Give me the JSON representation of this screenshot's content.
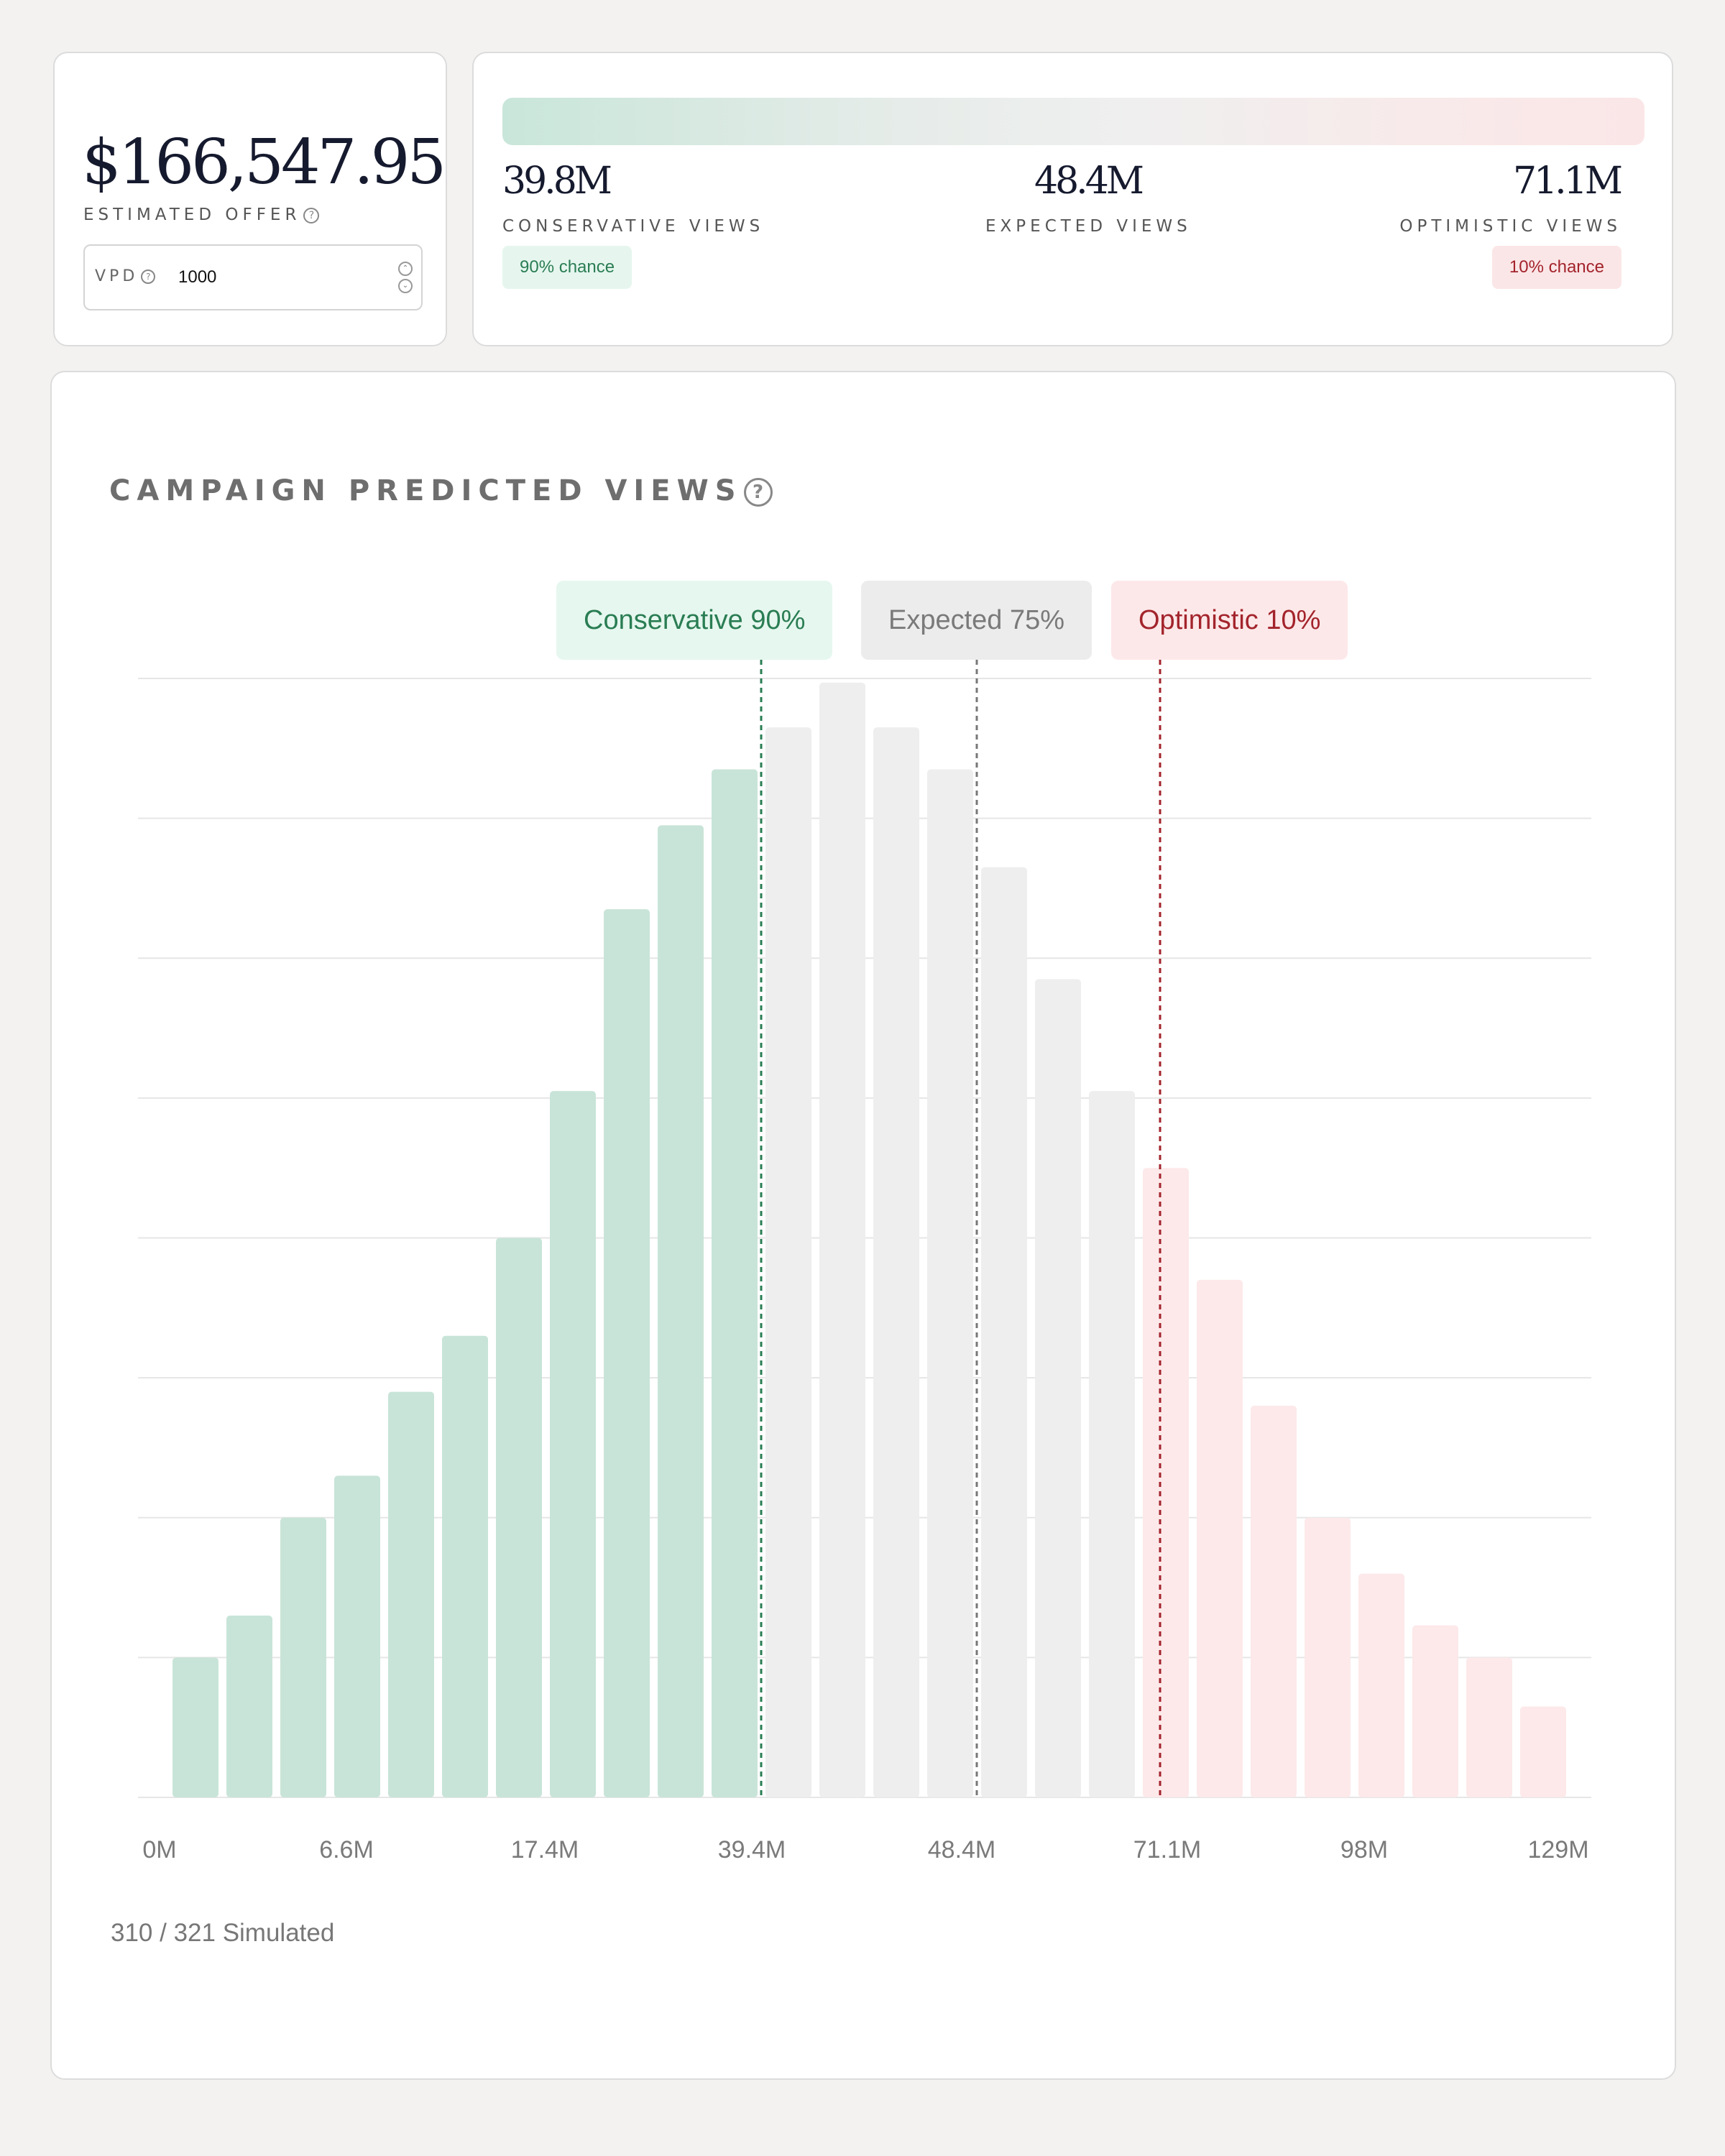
{
  "offer": {
    "value": "$166,547.95",
    "label": "ESTIMATED OFFER",
    "help_icon": "question-circle-icon",
    "vpd_label": "VPD",
    "vpd_value": "1000",
    "stepper_up_icon": "chevron-up-icon",
    "stepper_down_icon": "chevron-down-icon"
  },
  "views": {
    "bar_colors": {
      "start": "#c9e6da",
      "end": "#fbe6e7"
    },
    "conservative": {
      "value": "39.8M",
      "label": "CONSERVATIVE VIEWS",
      "chance": "90% chance"
    },
    "expected": {
      "value": "48.4M",
      "label": "EXPECTED VIEWS"
    },
    "optimistic": {
      "value": "71.1M",
      "label": "OPTIMISTIC VIEWS",
      "chance": "10% chance"
    }
  },
  "chart_panel": {
    "title": "CAMPAIGN PREDICTED VIEWS",
    "help_icon": "question-circle-icon",
    "simulated": "310 / 321 Simulated"
  },
  "colors": {
    "conservative": "#c8e4d8",
    "expected": "#eeeeee",
    "optimistic": "#fde9ea",
    "conservative_line": "#2a7d53",
    "expected_line": "#777777",
    "optimistic_line": "#a3242c",
    "grid": "#e6e6e6"
  },
  "chart_data": {
    "type": "bar",
    "title": "CAMPAIGN PREDICTED VIEWS",
    "xlabel": "",
    "ylabel": "",
    "grid": true,
    "x_tick_labels": [
      "0M",
      "6.6M",
      "17.4M",
      "39.4M",
      "48.4M",
      "71.1M",
      "98M",
      "129M"
    ],
    "ylim": [
      0,
      8
    ],
    "values": [
      1.0,
      1.3,
      2.0,
      2.3,
      2.9,
      3.3,
      4.0,
      5.05,
      6.35,
      6.95,
      7.35,
      7.65,
      7.97,
      7.65,
      7.35,
      6.65,
      5.85,
      5.05,
      4.5,
      3.7,
      2.8,
      2.0,
      1.6,
      1.23,
      1.0,
      0.65
    ],
    "segments": [
      {
        "name": "Conservative",
        "start": 0,
        "end": 11
      },
      {
        "name": "Expected",
        "start": 11,
        "end": 18
      },
      {
        "name": "Optimistic",
        "start": 18,
        "end": 25
      }
    ],
    "markers": [
      {
        "label": "Conservative 90%",
        "position": 11.0,
        "type": "conservative"
      },
      {
        "label": "Expected 75%",
        "position": 15.0,
        "type": "expected"
      },
      {
        "label": "Optimistic 10%",
        "position": 18.4,
        "type": "optimistic"
      }
    ]
  }
}
